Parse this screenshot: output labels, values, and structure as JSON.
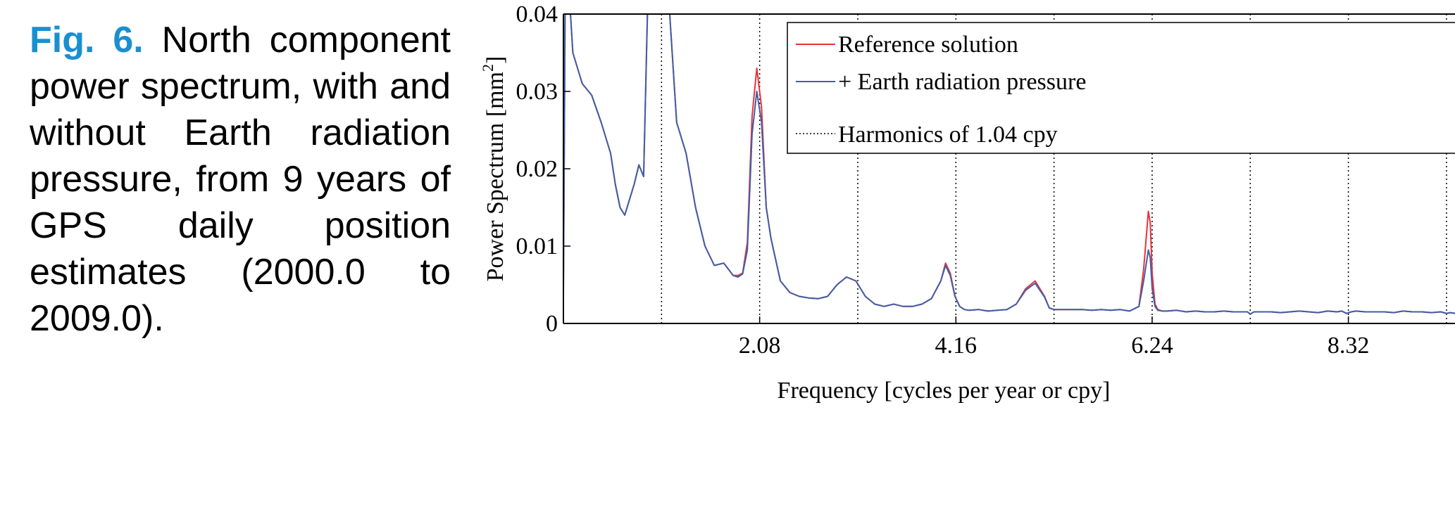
{
  "caption": {
    "label": "Fig. 6.",
    "text": "North component power spectrum, with and without Earth radiation pressure, from 9 years of GPS daily position estimates (2000.0 to 2009.0)."
  },
  "colors": {
    "caption_label": "#1a8fd0",
    "reference": "#e8323c",
    "earth_rp": "#3f5fa8",
    "harmonics": "#000000"
  },
  "chart_data": {
    "type": "line",
    "title": "",
    "xlabel": "Frequency [cycles per year or cpy]",
    "ylabel_prefix": "Power Spectrum [mm",
    "ylabel_sup": "2",
    "ylabel_suffix": "]",
    "xlim": [
      0,
      9.45
    ],
    "ylim": [
      0,
      0.04
    ],
    "xticks": [
      2.08,
      4.16,
      6.24,
      8.32
    ],
    "xtick_labels": [
      "2.08",
      "4.16",
      "6.24",
      "8.32"
    ],
    "yticks": [
      0,
      0.01,
      0.02,
      0.03,
      0.04
    ],
    "ytick_labels": [
      "0",
      "0.01",
      "0.02",
      "0.03",
      "0.04"
    ],
    "harmonics": [
      1.04,
      2.08,
      3.12,
      4.16,
      5.2,
      6.24,
      7.28,
      8.32,
      9.36
    ],
    "legend": {
      "position": "top-right",
      "entries": [
        "Reference solution",
        "+ Earth radiation pressure",
        "Harmonics of 1.04 cpy"
      ]
    },
    "series": [
      {
        "name": "Reference solution",
        "color": "#e8323c",
        "x": [
          0.0,
          0.02,
          0.05,
          0.1,
          0.2,
          0.3,
          0.4,
          0.5,
          0.55,
          0.6,
          0.65,
          0.7,
          0.75,
          0.8,
          0.85,
          0.9,
          0.95,
          1.0,
          1.05,
          1.1,
          1.2,
          1.3,
          1.4,
          1.5,
          1.6,
          1.7,
          1.75,
          1.8,
          1.85,
          1.9,
          1.95,
          2.0,
          2.05,
          2.1,
          2.15,
          2.2,
          2.3,
          2.4,
          2.5,
          2.6,
          2.7,
          2.8,
          2.9,
          3.0,
          3.1,
          3.2,
          3.3,
          3.4,
          3.5,
          3.6,
          3.7,
          3.8,
          3.9,
          4.0,
          4.05,
          4.1,
          4.15,
          4.2,
          4.25,
          4.3,
          4.4,
          4.5,
          4.6,
          4.7,
          4.8,
          4.9,
          5.0,
          5.1,
          5.15,
          5.2,
          5.25,
          5.3,
          5.4,
          5.5,
          5.6,
          5.7,
          5.8,
          5.9,
          6.0,
          6.1,
          6.15,
          6.2,
          6.22,
          6.24,
          6.27,
          6.3,
          6.35,
          6.4,
          6.5,
          6.6,
          6.7,
          6.8,
          6.9,
          7.0,
          7.1,
          7.2,
          7.25,
          7.28,
          7.32,
          7.4,
          7.5,
          7.6,
          7.7,
          7.8,
          7.9,
          8.0,
          8.1,
          8.2,
          8.25,
          8.3,
          8.35,
          8.4,
          8.5,
          8.6,
          8.7,
          8.8,
          8.9,
          9.0,
          9.1,
          9.2,
          9.3,
          9.36,
          9.4,
          9.45
        ],
        "y": [
          0.004,
          0.045,
          0.045,
          0.035,
          0.031,
          0.0295,
          0.026,
          0.022,
          0.018,
          0.015,
          0.014,
          0.016,
          0.018,
          0.0205,
          0.019,
          0.045,
          0.045,
          0.045,
          0.045,
          0.045,
          0.026,
          0.022,
          0.015,
          0.01,
          0.0075,
          0.0078,
          0.007,
          0.0062,
          0.0062,
          0.0065,
          0.0105,
          0.0268,
          0.033,
          0.028,
          0.015,
          0.011,
          0.0055,
          0.004,
          0.0035,
          0.0033,
          0.0032,
          0.0035,
          0.005,
          0.006,
          0.0055,
          0.0035,
          0.0025,
          0.0022,
          0.0025,
          0.0022,
          0.0022,
          0.0025,
          0.0032,
          0.0055,
          0.0078,
          0.0065,
          0.0035,
          0.0022,
          0.0018,
          0.0017,
          0.0018,
          0.0016,
          0.0017,
          0.0018,
          0.0025,
          0.0045,
          0.0055,
          0.0035,
          0.002,
          0.0018,
          0.0018,
          0.0018,
          0.0018,
          0.0018,
          0.0017,
          0.0018,
          0.0017,
          0.0018,
          0.0016,
          0.0022,
          0.007,
          0.0145,
          0.013,
          0.0065,
          0.0025,
          0.0018,
          0.0016,
          0.0016,
          0.0017,
          0.0015,
          0.0016,
          0.0015,
          0.0015,
          0.0016,
          0.0015,
          0.0015,
          0.0015,
          0.0012,
          0.0015,
          0.0015,
          0.0015,
          0.0014,
          0.0015,
          0.0016,
          0.0015,
          0.0014,
          0.0016,
          0.0015,
          0.0016,
          0.0013,
          0.0015,
          0.0016,
          0.0015,
          0.0015,
          0.0015,
          0.0014,
          0.0016,
          0.0015,
          0.0015,
          0.0014,
          0.0015,
          0.0013,
          0.0014,
          0.0013
        ]
      },
      {
        "name": "+ Earth radiation pressure",
        "color": "#3f5fa8",
        "x": [
          0.0,
          0.02,
          0.05,
          0.1,
          0.2,
          0.3,
          0.4,
          0.5,
          0.55,
          0.6,
          0.65,
          0.7,
          0.75,
          0.8,
          0.85,
          0.9,
          0.95,
          1.0,
          1.05,
          1.1,
          1.2,
          1.3,
          1.4,
          1.5,
          1.6,
          1.7,
          1.75,
          1.8,
          1.85,
          1.9,
          1.95,
          2.0,
          2.05,
          2.1,
          2.15,
          2.2,
          2.3,
          2.4,
          2.5,
          2.6,
          2.7,
          2.8,
          2.9,
          3.0,
          3.1,
          3.2,
          3.3,
          3.4,
          3.5,
          3.6,
          3.7,
          3.8,
          3.9,
          4.0,
          4.05,
          4.1,
          4.15,
          4.2,
          4.25,
          4.3,
          4.4,
          4.5,
          4.6,
          4.7,
          4.8,
          4.9,
          5.0,
          5.1,
          5.15,
          5.2,
          5.25,
          5.3,
          5.4,
          5.5,
          5.6,
          5.7,
          5.8,
          5.9,
          6.0,
          6.1,
          6.15,
          6.2,
          6.22,
          6.24,
          6.27,
          6.3,
          6.35,
          6.4,
          6.5,
          6.6,
          6.7,
          6.8,
          6.9,
          7.0,
          7.1,
          7.2,
          7.25,
          7.28,
          7.32,
          7.4,
          7.5,
          7.6,
          7.7,
          7.8,
          7.9,
          8.0,
          8.1,
          8.2,
          8.25,
          8.3,
          8.35,
          8.4,
          8.5,
          8.6,
          8.7,
          8.8,
          8.9,
          9.0,
          9.1,
          9.2,
          9.3,
          9.36,
          9.4,
          9.45
        ],
        "y": [
          0.004,
          0.045,
          0.045,
          0.035,
          0.031,
          0.0295,
          0.026,
          0.022,
          0.018,
          0.015,
          0.014,
          0.016,
          0.018,
          0.0205,
          0.019,
          0.045,
          0.045,
          0.045,
          0.045,
          0.045,
          0.026,
          0.022,
          0.015,
          0.01,
          0.0075,
          0.0078,
          0.007,
          0.0062,
          0.006,
          0.0064,
          0.0095,
          0.0245,
          0.03,
          0.026,
          0.015,
          0.011,
          0.0055,
          0.004,
          0.0035,
          0.0033,
          0.0032,
          0.0035,
          0.005,
          0.006,
          0.0055,
          0.0035,
          0.0025,
          0.0022,
          0.0025,
          0.0022,
          0.0022,
          0.0025,
          0.0032,
          0.0055,
          0.0075,
          0.0062,
          0.0035,
          0.0022,
          0.0018,
          0.0017,
          0.0018,
          0.0016,
          0.0017,
          0.0018,
          0.0025,
          0.0043,
          0.0052,
          0.0034,
          0.002,
          0.0018,
          0.0018,
          0.0018,
          0.0018,
          0.0018,
          0.0017,
          0.0018,
          0.0017,
          0.0018,
          0.0016,
          0.0022,
          0.0055,
          0.0095,
          0.0085,
          0.0045,
          0.0022,
          0.0017,
          0.0016,
          0.0016,
          0.0017,
          0.0015,
          0.0016,
          0.0015,
          0.0015,
          0.0016,
          0.0015,
          0.0015,
          0.0015,
          0.0012,
          0.0015,
          0.0015,
          0.0015,
          0.0014,
          0.0015,
          0.0016,
          0.0015,
          0.0014,
          0.0016,
          0.0015,
          0.0016,
          0.0013,
          0.0015,
          0.0016,
          0.0015,
          0.0015,
          0.0015,
          0.0014,
          0.0016,
          0.0015,
          0.0015,
          0.0014,
          0.0015,
          0.0013,
          0.0014,
          0.0013
        ]
      }
    ]
  }
}
